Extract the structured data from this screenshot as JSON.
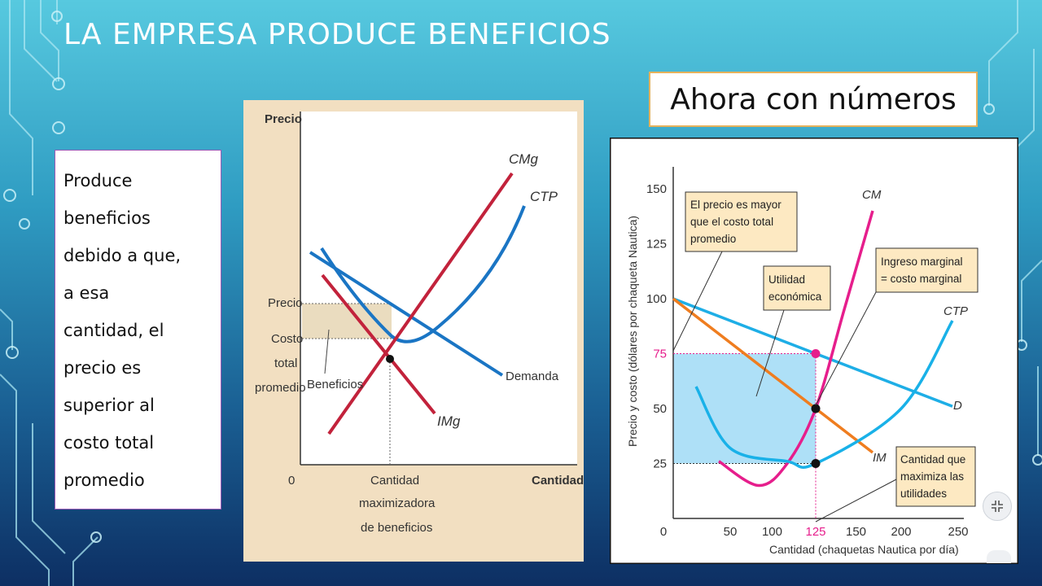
{
  "slide": {
    "title": "LA EMPRESA PRODUCE BENEFICIOS",
    "text_box": [
      "Produce",
      "beneficios",
      "debido a que,",
      "a esa",
      "cantidad, el",
      "precio es",
      "superior al",
      "costo total",
      "promedio"
    ],
    "label": "Ahora con números"
  },
  "figure_left": {
    "y_axis_label": "Precio",
    "x_axis_label": "Cantidad",
    "origin": "0",
    "price_tick": "Precio",
    "atc_tick": [
      "Costo",
      "total",
      "promedio"
    ],
    "q_tick": [
      "Cantidad",
      "maximizadora",
      "de beneficios"
    ],
    "curves": {
      "mc": "CMg",
      "atc": "CTP",
      "demand": "Demanda",
      "mr": "IMg"
    },
    "area_label": "Beneficios"
  },
  "figure_right": {
    "y_axis_label": "Precio y costo (dólares por chaqueta Nautica)",
    "x_axis_label": "Cantidad (chaquetas Nautica por día)",
    "y_ticks": [
      "25",
      "50",
      "75",
      "100",
      "125",
      "150"
    ],
    "x_ticks": [
      "0",
      "50",
      "100",
      "125",
      "150",
      "200",
      "250"
    ],
    "curves": {
      "mc": "CM",
      "atc": "CTP",
      "demand": "D",
      "mr": "IM"
    },
    "box_price": [
      "El precio es mayor",
      "que el costo total",
      "promedio"
    ],
    "box_profit": [
      "Utilidad",
      "económica"
    ],
    "box_mr_mc": [
      "Ingreso marginal",
      "= costo marginal"
    ],
    "box_qty": [
      "Cantidad que",
      "maximiza las",
      "utilidades"
    ]
  },
  "chart_data": {
    "type": "line",
    "xlabel": "Cantidad (chaquetas Nautica por día)",
    "ylabel": "Precio y costo (dólares por chaqueta Nautica)",
    "xlim": [
      0,
      250
    ],
    "ylim": [
      0,
      150
    ],
    "series": [
      {
        "name": "D",
        "x": [
          0,
          125,
          245
        ],
        "y": [
          100,
          75,
          51
        ]
      },
      {
        "name": "IM",
        "x": [
          0,
          125,
          175
        ],
        "y": [
          100,
          50,
          30
        ]
      },
      {
        "name": "CM",
        "x": [
          40,
          75,
          100,
          125,
          150,
          175
        ],
        "y": [
          26,
          15,
          25,
          50,
          95,
          140
        ]
      },
      {
        "name": "CTP",
        "x": [
          20,
          50,
          100,
          125,
          200,
          245
        ],
        "y": [
          60,
          32,
          26,
          25,
          50,
          90
        ]
      }
    ],
    "profit_max_quantity": 125,
    "price_at_optimum": 75,
    "atc_at_optimum": 25,
    "mr_equals_mc_at": 50
  },
  "colors": {
    "left_bg": "#f2dfc1",
    "left_mc": "#c2223b",
    "left_atc": "#1a75c4",
    "right_d": "#1eaee6",
    "right_im": "#ef7d1f",
    "right_cm": "#e61e8c",
    "right_ctp": "#19b1e8",
    "right_profit": "#aee0f7",
    "callout_bg": "#fde9c2"
  }
}
